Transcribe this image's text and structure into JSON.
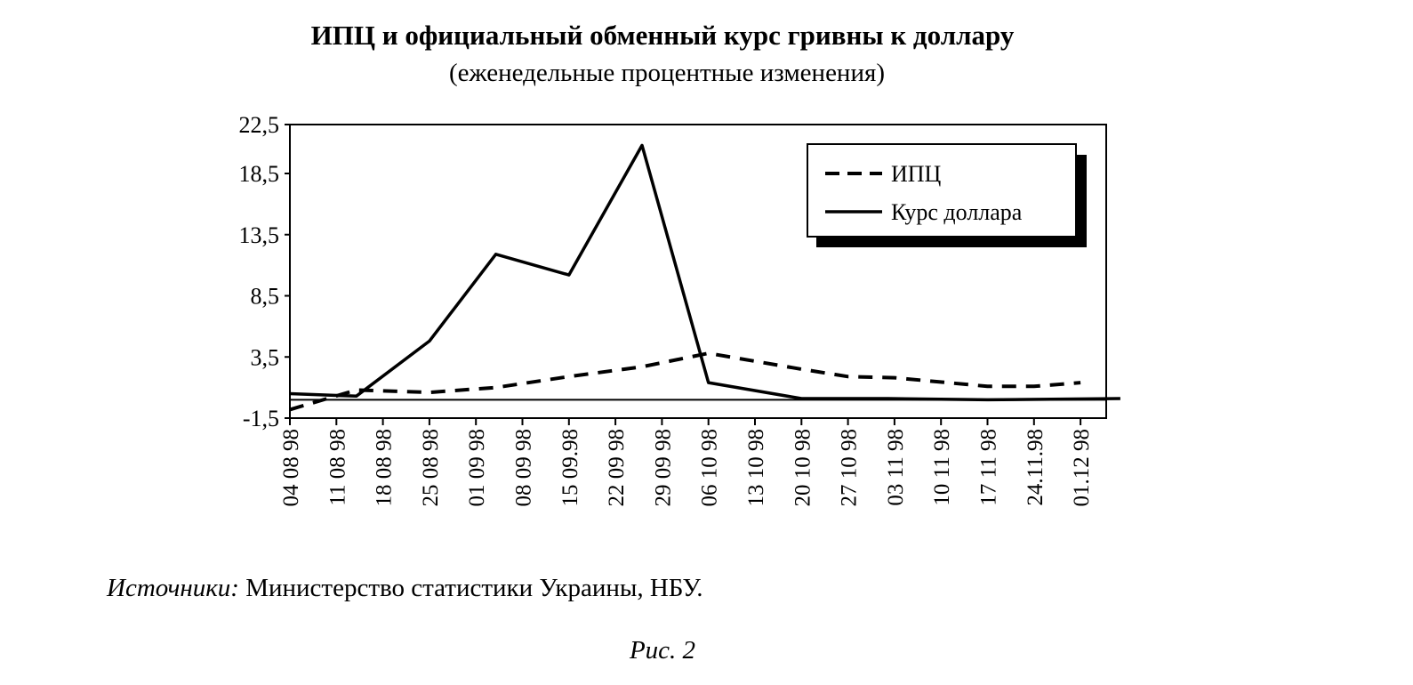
{
  "chart_data": {
    "type": "line",
    "title": "ИПЦ и официальный обменный курс гривны к доллару",
    "subtitle": "(еженедельные процентные изменения)",
    "ylim": [
      -1.5,
      22.5
    ],
    "yticks": [
      "-1,5",
      "3,5",
      "8,5",
      "13,5",
      "18,5",
      "22,5"
    ],
    "ytick_values": [
      -1.5,
      3.5,
      8.5,
      13.5,
      18.5,
      22.5
    ],
    "categories": [
      "04 08 98",
      "11 08 98",
      "18 08 98",
      "25 08 98",
      "01 09 98",
      "08 09 98",
      "15 09.98",
      "22 09 98",
      "29 09 98",
      "06 10 98",
      "13 10 98",
      "20 10 98",
      "27 10 98",
      "03 11 98",
      "10 11 98",
      "17 11 98",
      "24.11.98",
      "01.12 98"
    ],
    "xlim": [
      "1998-08-04",
      "1998-12-07"
    ],
    "grid": false,
    "zero_line": true,
    "legend_position": "top-right",
    "series": [
      {
        "name": "ИПЦ",
        "style": "dashed",
        "x": [
          "1998-08-04",
          "1998-08-14",
          "1998-08-25",
          "1998-09-04",
          "1998-09-15",
          "1998-09-26",
          "1998-10-06",
          "1998-10-20",
          "1998-10-27",
          "1998-11-03",
          "1998-11-17",
          "1998-11-24",
          "1998-12-01"
        ],
        "values": [
          -0.8,
          0.8,
          0.6,
          1.0,
          1.9,
          2.7,
          3.8,
          2.5,
          1.9,
          1.8,
          1.1,
          1.1,
          1.4
        ]
      },
      {
        "name": "Курс доллара",
        "style": "solid",
        "x": [
          "1998-08-04",
          "1998-08-14",
          "1998-08-25",
          "1998-09-04",
          "1998-09-15",
          "1998-09-26",
          "1998-10-06",
          "1998-10-20",
          "1998-11-02",
          "1998-11-17",
          "1998-12-07"
        ],
        "values": [
          0.5,
          0.3,
          4.8,
          11.9,
          10.2,
          20.8,
          1.4,
          0.1,
          0.1,
          0.0,
          0.1
        ]
      }
    ]
  },
  "source": {
    "label": "Источники:",
    "text": " Министерство статистики Украины, НБУ."
  },
  "figure_label": "Рис. 2"
}
